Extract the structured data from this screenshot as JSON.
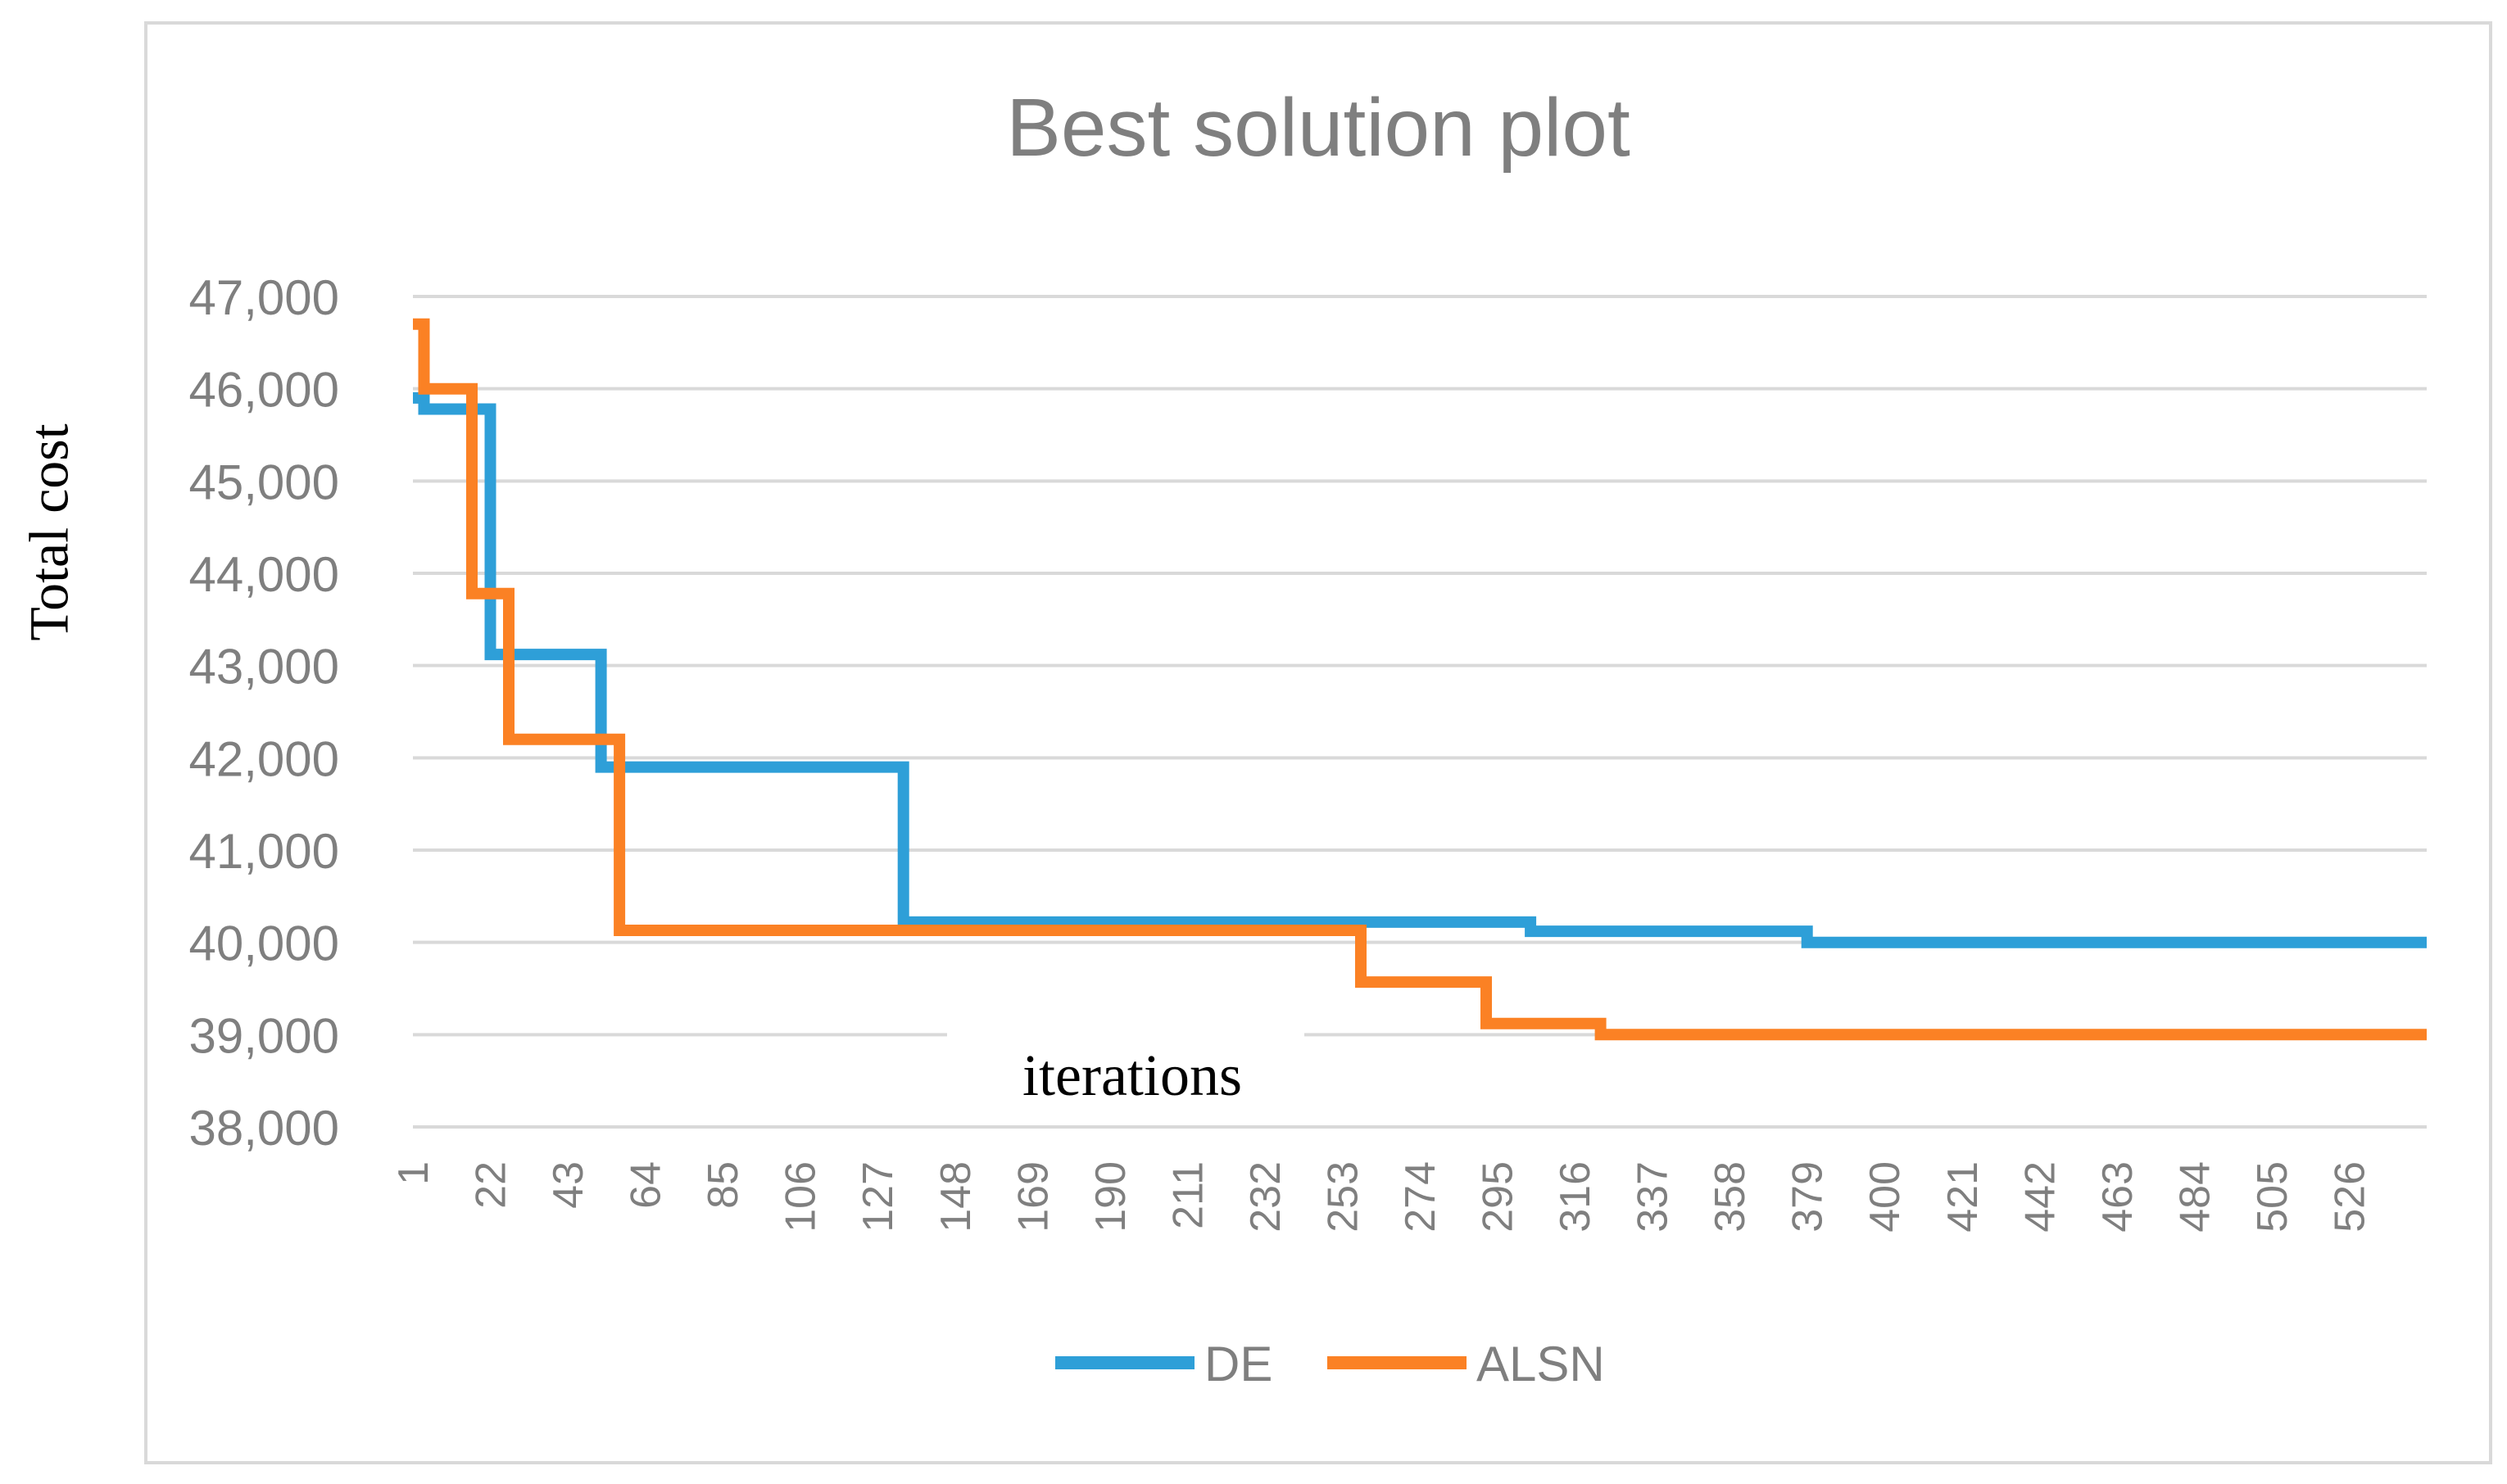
{
  "chart_data": {
    "type": "line",
    "title": "Best solution plot",
    "xlabel": "iterations",
    "ylabel": "Total cost",
    "ylim": [
      38000,
      47000
    ],
    "xlim": [
      1,
      547
    ],
    "yticks": [
      "38,000",
      "39,000",
      "40,000",
      "41,000",
      "42,000",
      "43,000",
      "44,000",
      "45,000",
      "46,000",
      "47,000"
    ],
    "ytick_values": [
      38000,
      39000,
      40000,
      41000,
      42000,
      43000,
      44000,
      45000,
      46000,
      47000
    ],
    "xticks": [
      "1",
      "22",
      "43",
      "64",
      "85",
      "106",
      "127",
      "148",
      "169",
      "190",
      "211",
      "232",
      "253",
      "274",
      "295",
      "316",
      "337",
      "358",
      "379",
      "400",
      "421",
      "442",
      "463",
      "484",
      "505",
      "526"
    ],
    "grid": true,
    "legend": "bottom",
    "series": [
      {
        "name": "DE",
        "color": "#2e9fd8",
        "points": [
          [
            1,
            45900
          ],
          [
            4,
            45900
          ],
          [
            4,
            45780
          ],
          [
            22,
            45780
          ],
          [
            22,
            43120
          ],
          [
            52,
            43120
          ],
          [
            52,
            41900
          ],
          [
            134,
            41900
          ],
          [
            134,
            40220
          ],
          [
            304,
            40220
          ],
          [
            304,
            40120
          ],
          [
            379,
            40120
          ],
          [
            379,
            40000
          ],
          [
            547,
            40000
          ]
        ]
      },
      {
        "name": "ALSN",
        "color": "#fb8124",
        "points": [
          [
            1,
            46700
          ],
          [
            4,
            46700
          ],
          [
            4,
            46000
          ],
          [
            17,
            46000
          ],
          [
            17,
            43780
          ],
          [
            27,
            43780
          ],
          [
            27,
            42200
          ],
          [
            57,
            42200
          ],
          [
            57,
            40130
          ],
          [
            258,
            40130
          ],
          [
            258,
            39570
          ],
          [
            292,
            39570
          ],
          [
            292,
            39120
          ],
          [
            323,
            39120
          ],
          [
            323,
            39000
          ],
          [
            547,
            39000
          ]
        ]
      }
    ]
  }
}
